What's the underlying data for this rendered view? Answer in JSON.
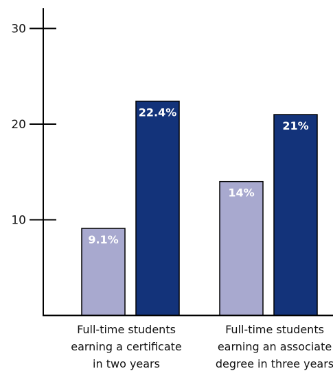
{
  "chart_data": {
    "type": "bar",
    "title": "",
    "xlabel": "",
    "ylabel": "",
    "ylim": [
      0,
      30
    ],
    "yticks": [
      10,
      20,
      30
    ],
    "grid": false,
    "categories": [
      [
        "Full-time students",
        "earning a certificate",
        "in two years"
      ],
      [
        "Full-time students",
        "earning an associate",
        "degree in three years"
      ]
    ],
    "series": [
      {
        "color": "#a8a9cf",
        "values": [
          9.1,
          14
        ],
        "labels": [
          "9.1%",
          "14%"
        ]
      },
      {
        "color": "#13337a",
        "values": [
          22.4,
          21
        ],
        "labels": [
          "22.4%",
          "21%"
        ]
      }
    ]
  }
}
